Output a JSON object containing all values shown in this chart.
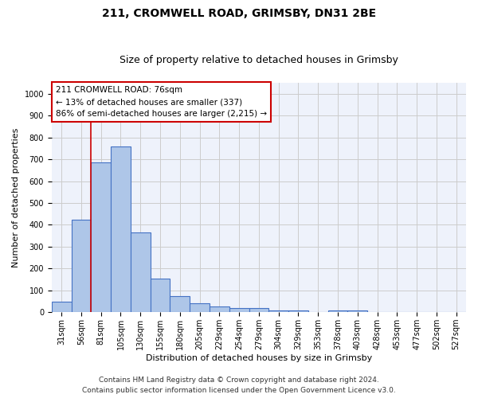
{
  "title_line1": "211, CROMWELL ROAD, GRIMSBY, DN31 2BE",
  "title_line2": "Size of property relative to detached houses in Grimsby",
  "xlabel": "Distribution of detached houses by size in Grimsby",
  "ylabel": "Number of detached properties",
  "categories": [
    "31sqm",
    "56sqm",
    "81sqm",
    "105sqm",
    "130sqm",
    "155sqm",
    "180sqm",
    "205sqm",
    "229sqm",
    "254sqm",
    "279sqm",
    "304sqm",
    "329sqm",
    "353sqm",
    "378sqm",
    "403sqm",
    "428sqm",
    "453sqm",
    "477sqm",
    "502sqm",
    "527sqm"
  ],
  "values": [
    50,
    425,
    685,
    760,
    365,
    155,
    75,
    40,
    28,
    18,
    18,
    10,
    10,
    0,
    8,
    8,
    0,
    0,
    0,
    0,
    0
  ],
  "bar_color": "#aec6e8",
  "bar_edge_color": "#4472c4",
  "annotation_text": "211 CROMWELL ROAD: 76sqm\n← 13% of detached houses are smaller (337)\n86% of semi-detached houses are larger (2,215) →",
  "annotation_box_color": "#ffffff",
  "annotation_box_edge_color": "#cc0000",
  "vline_color": "#cc0000",
  "vline_x": 1.5,
  "ylim": [
    0,
    1050
  ],
  "yticks": [
    0,
    100,
    200,
    300,
    400,
    500,
    600,
    700,
    800,
    900,
    1000
  ],
  "grid_color": "#cccccc",
  "background_color": "#eef2fb",
  "footer_line1": "Contains HM Land Registry data © Crown copyright and database right 2024.",
  "footer_line2": "Contains public sector information licensed under the Open Government Licence v3.0.",
  "title_fontsize": 10,
  "subtitle_fontsize": 9,
  "axis_label_fontsize": 8,
  "tick_fontsize": 7,
  "annotation_fontsize": 7.5,
  "footer_fontsize": 6.5
}
